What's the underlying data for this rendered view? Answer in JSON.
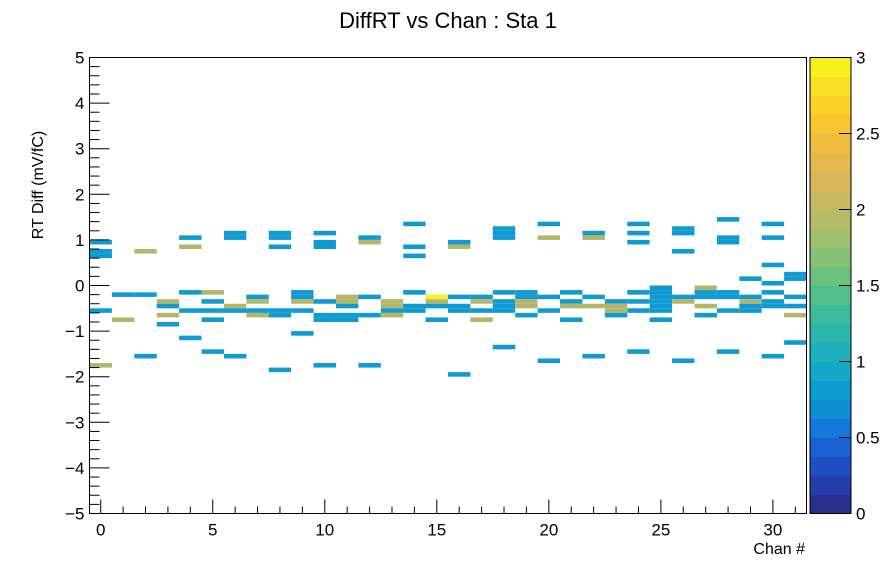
{
  "chart_data": {
    "type": "heatmap",
    "title": "DiffRT vs Chan : Sta 1",
    "xlabel": "Chan #",
    "ylabel": "RT Diff (mV/fC)",
    "xlim": [
      -0.5,
      31.5
    ],
    "ylim": [
      -5,
      5
    ],
    "x_ticks": [
      0,
      5,
      10,
      15,
      20,
      25,
      30
    ],
    "y_ticks": [
      -5,
      -4,
      -3,
      -2,
      -1,
      0,
      1,
      2,
      3,
      4,
      5
    ],
    "colorbar": {
      "zlim": [
        0,
        3
      ],
      "ticks": [
        0,
        0.5,
        1,
        1.5,
        2,
        2.5,
        3
      ],
      "tick_labels": [
        "0",
        "0.5",
        "1",
        "1.5",
        "2",
        "2.5",
        "3"
      ]
    },
    "bin_height": 0.1,
    "grid": false,
    "cells": [
      {
        "x": 0,
        "y": 0.95,
        "z": 1
      },
      {
        "x": 0,
        "y": 0.75,
        "z": 1
      },
      {
        "x": 0,
        "y": 0.65,
        "z": 1
      },
      {
        "x": 0,
        "y": -0.55,
        "z": 1
      },
      {
        "x": 0,
        "y": -1.75,
        "z": 2
      },
      {
        "x": 1,
        "y": -0.2,
        "z": 1
      },
      {
        "x": 1,
        "y": -0.75,
        "z": 2
      },
      {
        "x": 2,
        "y": 0.75,
        "z": 2
      },
      {
        "x": 2,
        "y": -0.2,
        "z": 1
      },
      {
        "x": 2,
        "y": -1.55,
        "z": 1
      },
      {
        "x": 3,
        "y": -0.35,
        "z": 2
      },
      {
        "x": 3,
        "y": -0.45,
        "z": 1
      },
      {
        "x": 3,
        "y": -0.65,
        "z": 2
      },
      {
        "x": 3,
        "y": -0.85,
        "z": 1
      },
      {
        "x": 4,
        "y": 1.05,
        "z": 1
      },
      {
        "x": 4,
        "y": 0.85,
        "z": 2
      },
      {
        "x": 4,
        "y": -0.15,
        "z": 1
      },
      {
        "x": 4,
        "y": -0.55,
        "z": 1
      },
      {
        "x": 4,
        "y": -1.15,
        "z": 1
      },
      {
        "x": 5,
        "y": -0.15,
        "z": 2
      },
      {
        "x": 5,
        "y": -0.35,
        "z": 1
      },
      {
        "x": 5,
        "y": -0.55,
        "z": 1
      },
      {
        "x": 5,
        "y": -0.75,
        "z": 1
      },
      {
        "x": 5,
        "y": -1.45,
        "z": 1
      },
      {
        "x": 6,
        "y": 1.15,
        "z": 1
      },
      {
        "x": 6,
        "y": 1.05,
        "z": 1
      },
      {
        "x": 6,
        "y": -0.45,
        "z": 2
      },
      {
        "x": 6,
        "y": -0.55,
        "z": 1
      },
      {
        "x": 6,
        "y": -1.55,
        "z": 1
      },
      {
        "x": 7,
        "y": -0.25,
        "z": 1
      },
      {
        "x": 7,
        "y": -0.35,
        "z": 2
      },
      {
        "x": 7,
        "y": -0.65,
        "z": 2
      },
      {
        "x": 7,
        "y": -0.55,
        "z": 1
      },
      {
        "x": 8,
        "y": 1.15,
        "z": 1
      },
      {
        "x": 8,
        "y": 1.05,
        "z": 1
      },
      {
        "x": 8,
        "y": 0.85,
        "z": 1
      },
      {
        "x": 8,
        "y": -0.55,
        "z": 1
      },
      {
        "x": 8,
        "y": -0.65,
        "z": 1
      },
      {
        "x": 8,
        "y": -1.85,
        "z": 1
      },
      {
        "x": 9,
        "y": -0.15,
        "z": 1
      },
      {
        "x": 9,
        "y": -0.25,
        "z": 1
      },
      {
        "x": 9,
        "y": -0.35,
        "z": 2
      },
      {
        "x": 9,
        "y": -0.55,
        "z": 1
      },
      {
        "x": 9,
        "y": -1.05,
        "z": 1
      },
      {
        "x": 10,
        "y": 1.15,
        "z": 1
      },
      {
        "x": 10,
        "y": 0.95,
        "z": 1
      },
      {
        "x": 10,
        "y": 0.85,
        "z": 1
      },
      {
        "x": 10,
        "y": -0.35,
        "z": 1
      },
      {
        "x": 10,
        "y": -0.65,
        "z": 1
      },
      {
        "x": 10,
        "y": -0.75,
        "z": 1
      },
      {
        "x": 10,
        "y": -1.75,
        "z": 1
      },
      {
        "x": 11,
        "y": -0.25,
        "z": 2
      },
      {
        "x": 11,
        "y": -0.35,
        "z": 2
      },
      {
        "x": 11,
        "y": -0.45,
        "z": 1
      },
      {
        "x": 11,
        "y": -0.65,
        "z": 1
      },
      {
        "x": 11,
        "y": -0.75,
        "z": 1
      },
      {
        "x": 12,
        "y": 1.05,
        "z": 1
      },
      {
        "x": 12,
        "y": 0.95,
        "z": 2
      },
      {
        "x": 12,
        "y": -0.25,
        "z": 1
      },
      {
        "x": 12,
        "y": -0.65,
        "z": 1
      },
      {
        "x": 12,
        "y": -1.75,
        "z": 1
      },
      {
        "x": 13,
        "y": -0.35,
        "z": 2
      },
      {
        "x": 13,
        "y": -0.45,
        "z": 2
      },
      {
        "x": 13,
        "y": -0.55,
        "z": 1
      },
      {
        "x": 13,
        "y": -0.65,
        "z": 2
      },
      {
        "x": 14,
        "y": 1.35,
        "z": 1
      },
      {
        "x": 14,
        "y": 0.85,
        "z": 1
      },
      {
        "x": 14,
        "y": 0.65,
        "z": 1
      },
      {
        "x": 14,
        "y": -0.15,
        "z": 1
      },
      {
        "x": 14,
        "y": -0.45,
        "z": 1
      },
      {
        "x": 14,
        "y": -0.55,
        "z": 1
      },
      {
        "x": 15,
        "y": -0.25,
        "z": 3
      },
      {
        "x": 15,
        "y": -0.35,
        "z": 2
      },
      {
        "x": 15,
        "y": -0.45,
        "z": 1
      },
      {
        "x": 15,
        "y": -0.75,
        "z": 1
      },
      {
        "x": 16,
        "y": 0.95,
        "z": 1
      },
      {
        "x": 16,
        "y": 0.85,
        "z": 2
      },
      {
        "x": 16,
        "y": -0.25,
        "z": 1
      },
      {
        "x": 16,
        "y": -0.45,
        "z": 1
      },
      {
        "x": 16,
        "y": -0.55,
        "z": 1
      },
      {
        "x": 16,
        "y": -1.95,
        "z": 1
      },
      {
        "x": 17,
        "y": -0.25,
        "z": 1
      },
      {
        "x": 17,
        "y": -0.35,
        "z": 2
      },
      {
        "x": 17,
        "y": -0.55,
        "z": 1
      },
      {
        "x": 17,
        "y": -0.75,
        "z": 2
      },
      {
        "x": 18,
        "y": 1.25,
        "z": 1
      },
      {
        "x": 18,
        "y": 1.15,
        "z": 1
      },
      {
        "x": 18,
        "y": 1.05,
        "z": 1
      },
      {
        "x": 18,
        "y": -0.15,
        "z": 1
      },
      {
        "x": 18,
        "y": -0.35,
        "z": 1
      },
      {
        "x": 18,
        "y": -0.45,
        "z": 1
      },
      {
        "x": 18,
        "y": -0.55,
        "z": 1
      },
      {
        "x": 18,
        "y": -1.35,
        "z": 1
      },
      {
        "x": 19,
        "y": -0.15,
        "z": 1
      },
      {
        "x": 19,
        "y": -0.25,
        "z": 1
      },
      {
        "x": 19,
        "y": -0.35,
        "z": 2
      },
      {
        "x": 19,
        "y": -0.45,
        "z": 2
      },
      {
        "x": 19,
        "y": -0.65,
        "z": 1
      },
      {
        "x": 20,
        "y": 1.35,
        "z": 1
      },
      {
        "x": 20,
        "y": 1.05,
        "z": 2
      },
      {
        "x": 20,
        "y": -0.25,
        "z": 1
      },
      {
        "x": 20,
        "y": -0.55,
        "z": 1
      },
      {
        "x": 20,
        "y": -1.65,
        "z": 1
      },
      {
        "x": 21,
        "y": -0.15,
        "z": 1
      },
      {
        "x": 21,
        "y": -0.35,
        "z": 1
      },
      {
        "x": 21,
        "y": -0.45,
        "z": 2
      },
      {
        "x": 21,
        "y": -0.75,
        "z": 1
      },
      {
        "x": 22,
        "y": 1.15,
        "z": 1
      },
      {
        "x": 22,
        "y": 1.05,
        "z": 2
      },
      {
        "x": 22,
        "y": -0.25,
        "z": 1
      },
      {
        "x": 22,
        "y": -0.45,
        "z": 2
      },
      {
        "x": 22,
        "y": -1.55,
        "z": 1
      },
      {
        "x": 23,
        "y": -0.35,
        "z": 1
      },
      {
        "x": 23,
        "y": -0.45,
        "z": 2
      },
      {
        "x": 23,
        "y": -0.55,
        "z": 2
      },
      {
        "x": 23,
        "y": -0.65,
        "z": 1
      },
      {
        "x": 24,
        "y": 1.35,
        "z": 1
      },
      {
        "x": 24,
        "y": 1.15,
        "z": 1
      },
      {
        "x": 24,
        "y": 0.95,
        "z": 1
      },
      {
        "x": 24,
        "y": -0.15,
        "z": 1
      },
      {
        "x": 24,
        "y": -0.35,
        "z": 1
      },
      {
        "x": 24,
        "y": -0.55,
        "z": 1
      },
      {
        "x": 24,
        "y": -1.45,
        "z": 1
      },
      {
        "x": 25,
        "y": -0.05,
        "z": 1
      },
      {
        "x": 25,
        "y": -0.15,
        "z": 1
      },
      {
        "x": 25,
        "y": -0.25,
        "z": 1
      },
      {
        "x": 25,
        "y": -0.35,
        "z": 1
      },
      {
        "x": 25,
        "y": -0.45,
        "z": 1
      },
      {
        "x": 25,
        "y": -0.55,
        "z": 1
      },
      {
        "x": 25,
        "y": -0.75,
        "z": 1
      },
      {
        "x": 26,
        "y": 1.25,
        "z": 1
      },
      {
        "x": 26,
        "y": 1.15,
        "z": 1
      },
      {
        "x": 26,
        "y": 0.75,
        "z": 1
      },
      {
        "x": 26,
        "y": -0.25,
        "z": 1
      },
      {
        "x": 26,
        "y": -0.35,
        "z": 2
      },
      {
        "x": 26,
        "y": -1.65,
        "z": 1
      },
      {
        "x": 27,
        "y": -0.05,
        "z": 2
      },
      {
        "x": 27,
        "y": -0.15,
        "z": 1
      },
      {
        "x": 27,
        "y": -0.25,
        "z": 1
      },
      {
        "x": 27,
        "y": -0.45,
        "z": 2
      },
      {
        "x": 27,
        "y": -0.65,
        "z": 1
      },
      {
        "x": 28,
        "y": 1.45,
        "z": 1
      },
      {
        "x": 28,
        "y": 1.05,
        "z": 1
      },
      {
        "x": 28,
        "y": 0.95,
        "z": 1
      },
      {
        "x": 28,
        "y": -0.15,
        "z": 1
      },
      {
        "x": 28,
        "y": -0.25,
        "z": 1
      },
      {
        "x": 28,
        "y": -0.55,
        "z": 1
      },
      {
        "x": 28,
        "y": -1.45,
        "z": 1
      },
      {
        "x": 29,
        "y": 0.15,
        "z": 1
      },
      {
        "x": 29,
        "y": -0.25,
        "z": 1
      },
      {
        "x": 29,
        "y": -0.35,
        "z": 2
      },
      {
        "x": 29,
        "y": -0.45,
        "z": 1
      },
      {
        "x": 29,
        "y": -0.55,
        "z": 1
      },
      {
        "x": 30,
        "y": 1.35,
        "z": 1
      },
      {
        "x": 30,
        "y": 1.05,
        "z": 1
      },
      {
        "x": 30,
        "y": 0.45,
        "z": 1
      },
      {
        "x": 30,
        "y": 0.05,
        "z": 1
      },
      {
        "x": 30,
        "y": -0.15,
        "z": 1
      },
      {
        "x": 30,
        "y": -0.35,
        "z": 1
      },
      {
        "x": 30,
        "y": -0.45,
        "z": 1
      },
      {
        "x": 30,
        "y": -1.55,
        "z": 1
      },
      {
        "x": 31,
        "y": 0.25,
        "z": 1
      },
      {
        "x": 31,
        "y": 0.15,
        "z": 1
      },
      {
        "x": 31,
        "y": -0.25,
        "z": 1
      },
      {
        "x": 31,
        "y": -0.45,
        "z": 1
      },
      {
        "x": 31,
        "y": -0.65,
        "z": 2
      },
      {
        "x": 31,
        "y": -1.25,
        "z": 1
      }
    ]
  },
  "colors": {
    "z1": "#0f9bd2",
    "z2": "#b5b56a",
    "z3": "#f5ee2a",
    "palette": [
      "#2a2e8f",
      "#233ea8",
      "#1f4fc1",
      "#1a62d3",
      "#1478d8",
      "#0e8ed5",
      "#0b9dd0",
      "#13a8c8",
      "#1eb0bc",
      "#2bb6ad",
      "#3cbb9c",
      "#52bf8c",
      "#6bc17f",
      "#86c276",
      "#9fc06f",
      "#b5bb69",
      "#c8b862",
      "#d8b75a",
      "#e5b84e",
      "#f0bd40",
      "#f7c532",
      "#fbd029",
      "#fadf25",
      "#f8f01e"
    ]
  }
}
